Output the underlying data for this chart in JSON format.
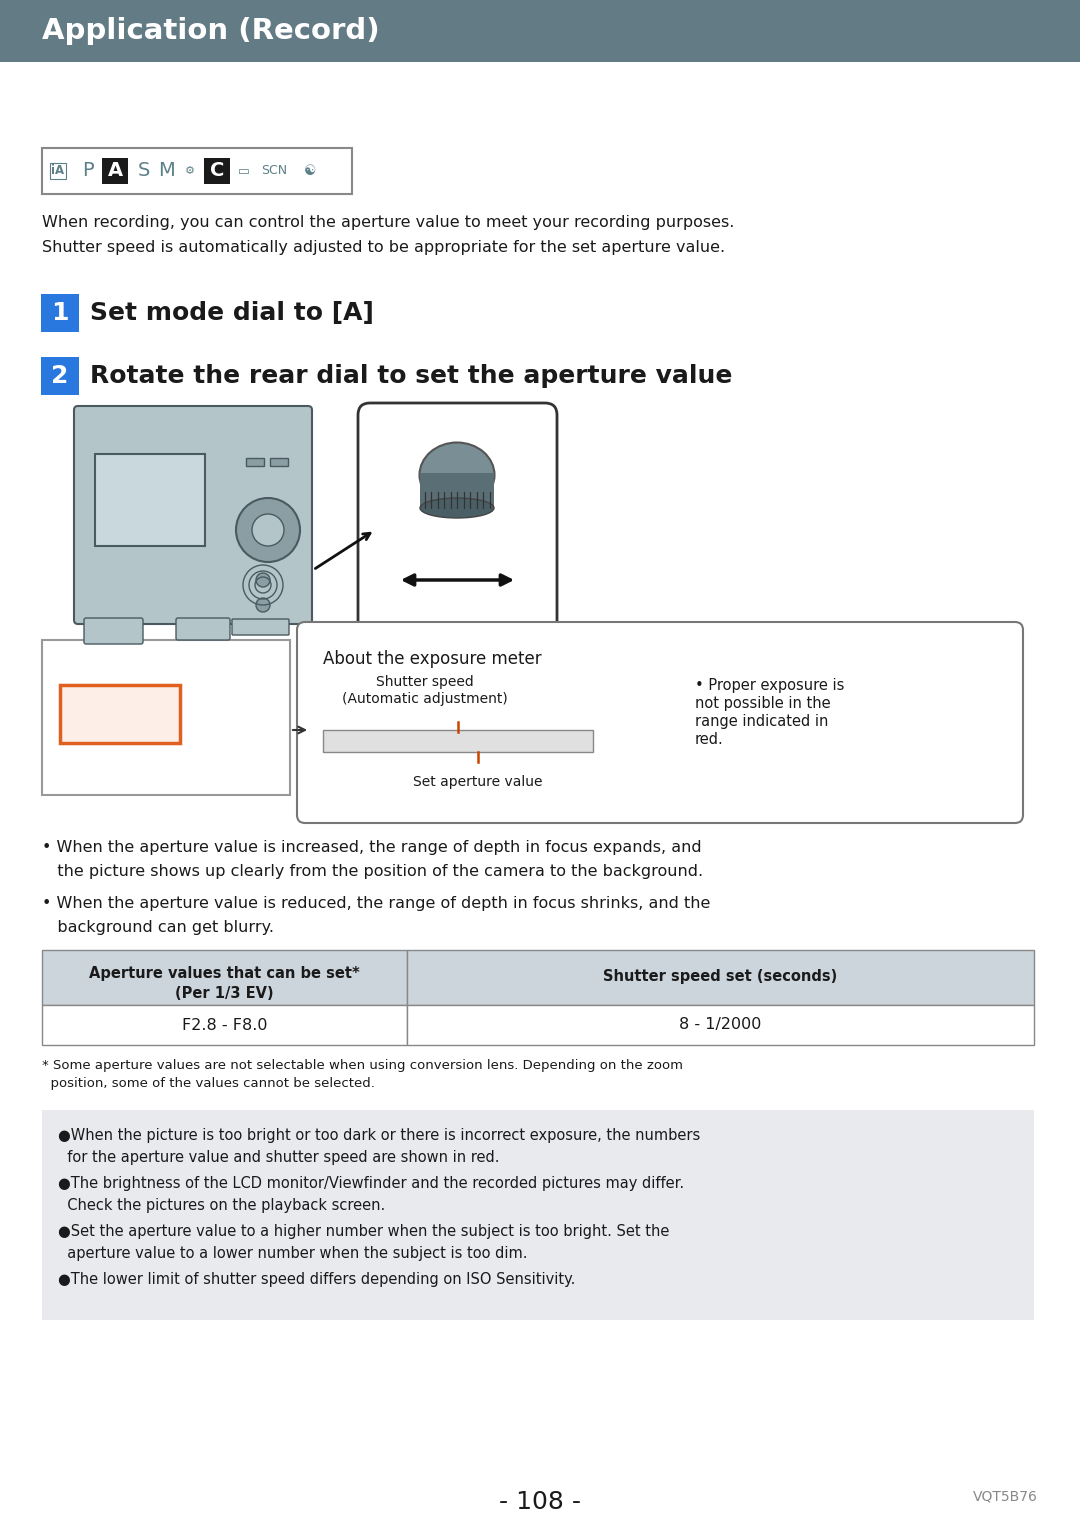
{
  "header_text": "Application (Record)",
  "header_bg": "#627b84",
  "header_text_color": "#ffffff",
  "page_bg": "#ffffff",
  "body_text_color": "#1a1a1a",
  "intro_line1": "When recording, you can control the aperture value to meet your recording purposes.",
  "intro_line2": "Shutter speed is automatically adjusted to be appropriate for the set aperture value.",
  "step1_num": "1",
  "step1_text": "Set mode dial to [A]",
  "step2_num": "2",
  "step2_text": "Rotate the rear dial to set the aperture value",
  "exposure_title": "About the exposure meter",
  "exposure_sub1": "Shutter speed",
  "exposure_sub2": "(Automatic adjustment)",
  "exposure_note1": "• Proper exposure is",
  "exposure_note2": "not possible in the",
  "exposure_note3": "range indicated in",
  "exposure_note4": "red.",
  "set_aperture_label": "Set aperture value",
  "bullet1_line1": "• When the aperture value is increased, the range of depth in focus expands, and",
  "bullet1_line2": "   the picture shows up clearly from the position of the camera to the background.",
  "bullet2_line1": "• When the aperture value is reduced, the range of depth in focus shrinks, and the",
  "bullet2_line2": "   background can get blurry.",
  "table_header1a": "Aperture values that can be set*",
  "table_header1b": "(Per 1/3 EV)",
  "table_header2": "Shutter speed set (seconds)",
  "table_row1_col1": "F2.8 - F8.0",
  "table_row1_col2": "8 - 1/2000",
  "footnote1": "* Some aperture values are not selectable when using conversion lens. Depending on the zoom",
  "footnote2": "  position, some of the values cannot be selected.",
  "note_bg": "#e8eaee",
  "note_bullet1a": "●When the picture is too bright or too dark or there is incorrect exposure, the numbers",
  "note_bullet1b": "  for the aperture value and shutter speed are shown in red.",
  "note_bullet2a": "●The brightness of the LCD monitor/Viewfinder and the recorded pictures may differ.",
  "note_bullet2b": "  Check the pictures on the playback screen.",
  "note_bullet3a": "●Set the aperture value to a higher number when the subject is too bright. Set the",
  "note_bullet3b": "  aperture value to a lower number when the subject is too dim.",
  "note_bullet4": "●The lower limit of shutter speed differs depending on ISO Sensitivity.",
  "page_num": "- 108 -",
  "model_num": "VQT5B76",
  "step_badge_bg": "#2878e0",
  "step_badge_text": "#ffffff",
  "icon_border": "#888888",
  "icon_color": "#5d8088",
  "icon_black_bg": "#1a1a1a"
}
